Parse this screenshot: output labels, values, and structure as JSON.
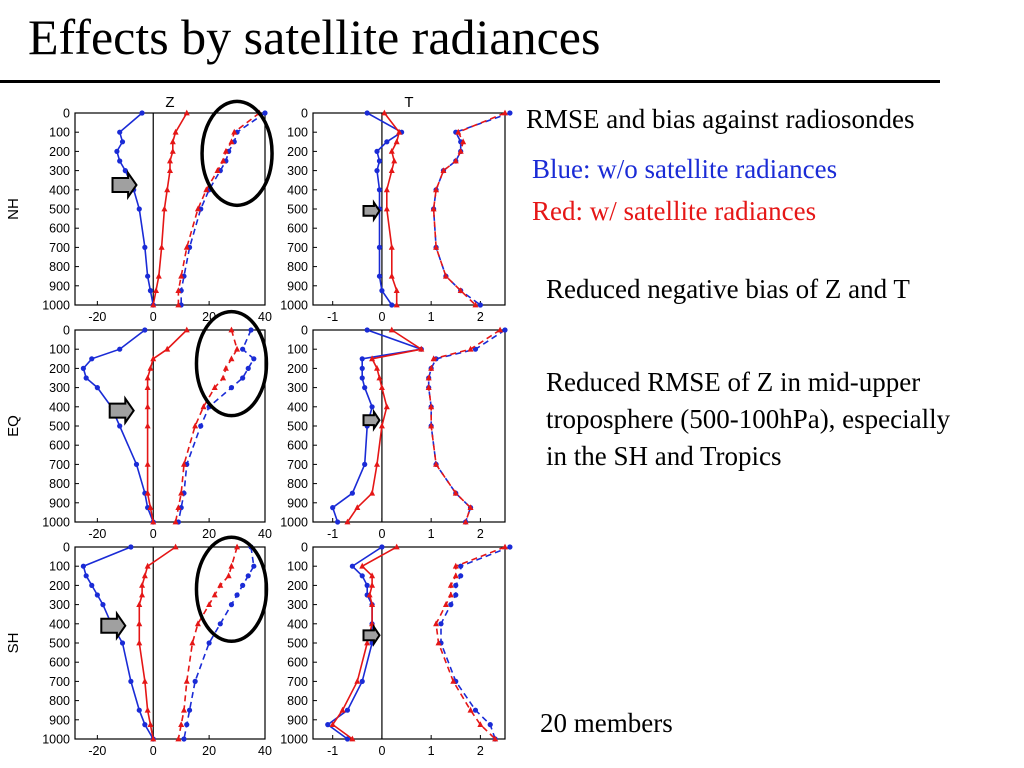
{
  "slide": {
    "title": "Effects by satellite radiances",
    "legend_title": "RMSE and bias against radiosondes",
    "legend_blue": "Blue: w/o satellite radiances",
    "legend_red": "Red: w/ satellite radiances",
    "note_bias": "Reduced negative bias of Z and T",
    "note_rmse": "Reduced RMSE of Z in mid-upper troposphere (500-100hPa), especially in the SH and Tropics",
    "note_members": "20 members"
  },
  "colors": {
    "blue": "#1a2bd6",
    "red": "#e51616",
    "arrow_fill": "#a0a0a0",
    "text": "#000000"
  },
  "chart_data": {
    "type": "line",
    "columns": [
      "Z",
      "T"
    ],
    "rows": [
      "NH",
      "EQ",
      "SH"
    ],
    "y_ticks": [
      0,
      100,
      200,
      300,
      400,
      500,
      600,
      700,
      800,
      900,
      1000
    ],
    "y_inverted": true,
    "levels": [
      0,
      100,
      150,
      200,
      250,
      300,
      400,
      500,
      700,
      850,
      925,
      1000
    ],
    "x_ticks": {
      "Z": [
        -20,
        0,
        20,
        40
      ],
      "T": [
        -1,
        0,
        1,
        2
      ]
    },
    "xlim": {
      "Z": [
        -28,
        40
      ],
      "T": [
        -1.4,
        2.5
      ]
    },
    "line_styles": {
      "rmse": "dashed",
      "bias": "solid"
    },
    "panels": [
      {
        "row": "NH",
        "column": "Z",
        "circle": [
          30,
          210
        ],
        "arrow": [
          -6,
          375
        ],
        "blue_bias": [
          -4,
          -12,
          -11,
          -13,
          -12,
          -10,
          -7,
          -5,
          -3,
          -2,
          -1,
          0
        ],
        "red_bias": [
          12,
          8,
          7,
          7,
          6,
          6,
          5,
          4,
          3,
          2,
          1,
          0
        ],
        "blue_rmse": [
          40,
          30,
          29,
          27,
          26,
          24,
          20,
          17,
          13,
          11,
          10,
          10
        ],
        "red_rmse": [
          38,
          29,
          28,
          26,
          25,
          23,
          19,
          16,
          12,
          10,
          9,
          9
        ]
      },
      {
        "row": "NH",
        "column": "T",
        "circle": null,
        "arrow": [
          -0.05,
          510
        ],
        "blue_bias": [
          -0.3,
          0.4,
          0.1,
          -0.1,
          -0.05,
          -0.1,
          -0.05,
          -0.05,
          -0.05,
          -0.05,
          0.0,
          0.2
        ],
        "red_bias": [
          0.05,
          0.35,
          0.3,
          0.2,
          0.25,
          0.2,
          0.1,
          0.1,
          0.2,
          0.2,
          0.3,
          0.3
        ],
        "blue_rmse": [
          2.6,
          1.5,
          1.6,
          1.6,
          1.5,
          1.25,
          1.1,
          1.05,
          1.1,
          1.3,
          1.6,
          2.0
        ],
        "red_rmse": [
          2.5,
          1.55,
          1.65,
          1.6,
          1.5,
          1.25,
          1.1,
          1.05,
          1.1,
          1.3,
          1.6,
          1.9
        ]
      },
      {
        "row": "EQ",
        "column": "Z",
        "circle": [
          28,
          175
        ],
        "arrow": [
          -7,
          420
        ],
        "blue_bias": [
          -3,
          -12,
          -22,
          -25,
          -24,
          -20,
          -15,
          -12,
          -6,
          -3,
          -2,
          0
        ],
        "red_bias": [
          12,
          5,
          0,
          -1,
          -2,
          -2,
          -2,
          -2,
          -2,
          -2,
          -1,
          0
        ],
        "blue_rmse": [
          35,
          32,
          36,
          34,
          32,
          28,
          20,
          17,
          12,
          11,
          10,
          9
        ],
        "red_rmse": [
          28,
          30,
          28,
          26,
          25,
          22,
          18,
          15,
          11,
          10,
          9,
          8
        ]
      },
      {
        "row": "EQ",
        "column": "T",
        "circle": null,
        "arrow": [
          -0.05,
          470
        ],
        "blue_bias": [
          -0.3,
          0.8,
          -0.4,
          -0.4,
          -0.4,
          -0.35,
          -0.2,
          -0.3,
          -0.35,
          -0.6,
          -1.0,
          -0.9
        ],
        "red_bias": [
          0.2,
          0.8,
          -0.2,
          -0.1,
          -0.05,
          0.0,
          0.1,
          0.0,
          -0.1,
          -0.2,
          -0.5,
          -0.7
        ],
        "blue_rmse": [
          2.5,
          1.9,
          1.1,
          1.0,
          0.95,
          0.95,
          1.0,
          1.0,
          1.1,
          1.5,
          1.8,
          1.7
        ],
        "red_rmse": [
          2.4,
          1.8,
          1.05,
          1.0,
          0.95,
          0.95,
          1.0,
          1.0,
          1.1,
          1.5,
          1.8,
          1.7
        ]
      },
      {
        "row": "SH",
        "column": "Z",
        "circle": [
          28,
          220
        ],
        "arrow": [
          -10,
          410
        ],
        "blue_bias": [
          -8,
          -25,
          -24,
          -22,
          -20,
          -18,
          -15,
          -11,
          -8,
          -5,
          -3,
          0
        ],
        "red_bias": [
          8,
          -2,
          -3,
          -4,
          -4,
          -5,
          -5,
          -5,
          -3,
          -2,
          -1,
          0
        ],
        "blue_rmse": [
          35,
          36,
          34,
          32,
          30,
          28,
          24,
          20,
          15,
          13,
          12,
          11
        ],
        "red_rmse": [
          30,
          28,
          27,
          24,
          22,
          20,
          16,
          14,
          12,
          11,
          10,
          9
        ]
      },
      {
        "row": "SH",
        "column": "T",
        "circle": null,
        "arrow": [
          -0.05,
          460
        ],
        "blue_bias": [
          0.0,
          -0.6,
          -0.4,
          -0.3,
          -0.3,
          -0.2,
          -0.2,
          -0.2,
          -0.4,
          -0.7,
          -1.1,
          -0.7
        ],
        "red_bias": [
          0.3,
          -0.4,
          -0.2,
          -0.2,
          -0.25,
          -0.2,
          -0.2,
          -0.3,
          -0.5,
          -0.8,
          -1.0,
          -0.6
        ],
        "blue_rmse": [
          2.6,
          1.6,
          1.6,
          1.5,
          1.5,
          1.4,
          1.2,
          1.2,
          1.5,
          1.9,
          2.2,
          2.3
        ],
        "red_rmse": [
          2.5,
          1.5,
          1.5,
          1.4,
          1.4,
          1.3,
          1.1,
          1.15,
          1.45,
          1.8,
          2.0,
          2.3
        ]
      }
    ]
  }
}
